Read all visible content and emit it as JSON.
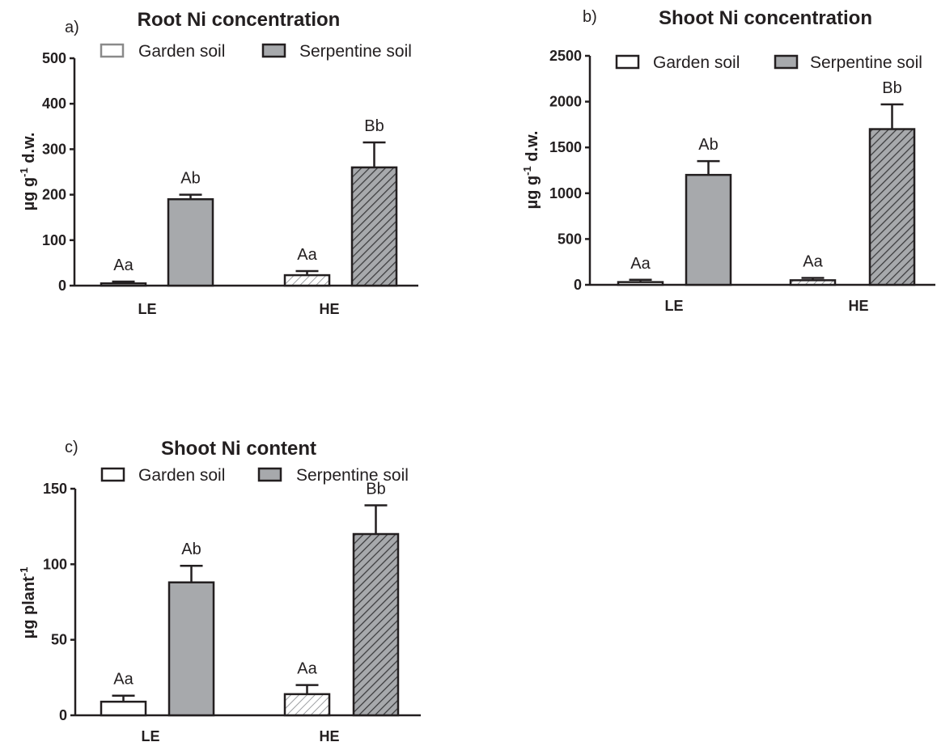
{
  "chart_data": [
    {
      "type": "bar",
      "panel": "a)",
      "title": "Root Ni concentration",
      "ylabel_main": "µg g",
      "ylabel_sup": "-1",
      "ylabel_tail": " d.w.",
      "ylim": [
        0,
        500
      ],
      "yticks": [
        "0",
        "100",
        "200",
        "300",
        "400",
        "500"
      ],
      "categories": [
        "LE",
        "HE"
      ],
      "series": [
        {
          "name": "Garden soil",
          "values": [
            5,
            23
          ],
          "errors": [
            4,
            9
          ]
        },
        {
          "name": "Serpentine soil",
          "values": [
            190,
            260
          ],
          "errors": [
            10,
            55
          ]
        }
      ],
      "labels": [
        [
          "Aa",
          "Ab"
        ],
        [
          "Aa",
          "Bb"
        ]
      ]
    },
    {
      "type": "bar",
      "panel": "b)",
      "title": "Shoot Ni concentration",
      "ylabel_main": "µg g",
      "ylabel_sup": "-1",
      "ylabel_tail": " d.w.",
      "ylim": [
        0,
        2500
      ],
      "yticks": [
        "0",
        "500",
        "1000",
        "1500",
        "2000",
        "2500"
      ],
      "categories": [
        "LE",
        "HE"
      ],
      "series": [
        {
          "name": "Garden soil",
          "values": [
            30,
            50
          ],
          "errors": [
            25,
            25
          ]
        },
        {
          "name": "Serpentine soil",
          "values": [
            1200,
            1700
          ],
          "errors": [
            150,
            270
          ]
        }
      ],
      "labels": [
        [
          "Aa",
          "Ab"
        ],
        [
          "Aa",
          "Bb"
        ]
      ]
    },
    {
      "type": "bar",
      "panel": "c)",
      "title": "Shoot Ni content",
      "ylabel_main": "µg plant",
      "ylabel_sup": "-1",
      "ylabel_tail": "",
      "ylim": [
        0,
        150
      ],
      "yticks": [
        "0",
        "50",
        "100",
        "150"
      ],
      "categories": [
        "LE",
        "HE"
      ],
      "series": [
        {
          "name": "Garden soil",
          "values": [
            9,
            14
          ],
          "errors": [
            4,
            6
          ]
        },
        {
          "name": "Serpentine soil",
          "values": [
            88,
            120
          ],
          "errors": [
            11,
            19
          ]
        }
      ],
      "labels": [
        [
          "Aa",
          "Ab"
        ],
        [
          "Aa",
          "Bb"
        ]
      ]
    }
  ],
  "colors": {
    "garden_fill": "#ffffff",
    "serpentine_fill": "#a7a9ac",
    "hatch_light": "#9d9fa2",
    "hatch_dark": "#3a3a3c",
    "stroke": "#231f20",
    "root_garden_legend_stroke": "#8a8a8a"
  }
}
